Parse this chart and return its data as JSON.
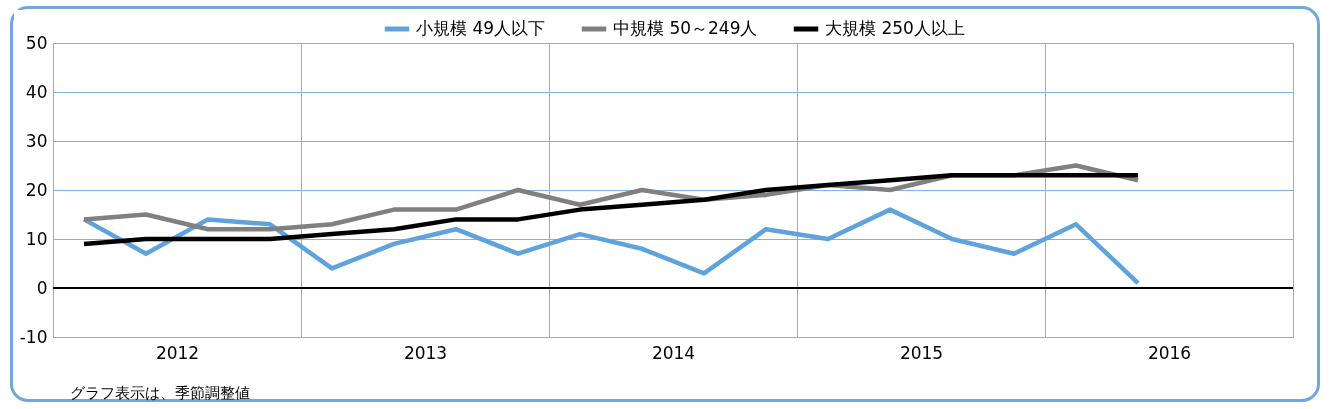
{
  "chart_data": {
    "type": "line",
    "x": [
      2012.125,
      2012.375,
      2012.625,
      2012.875,
      2013.125,
      2013.375,
      2013.625,
      2013.875,
      2014.125,
      2014.375,
      2014.625,
      2014.875,
      2015.125,
      2015.375,
      2015.625,
      2015.875,
      2016.125,
      2016.375
    ],
    "series": [
      {
        "name": "小規模 49人以下",
        "color": "#5fa3dc",
        "values": [
          14,
          7,
          14,
          13,
          4,
          9,
          12,
          7,
          11,
          8,
          3,
          12,
          10,
          16,
          10,
          7,
          13,
          1
        ]
      },
      {
        "name": "中規模 50～249人",
        "color": "#808080",
        "values": [
          14,
          15,
          12,
          12,
          13,
          16,
          16,
          20,
          17,
          20,
          18,
          19,
          21,
          20,
          23,
          23,
          25,
          22
        ]
      },
      {
        "name": "大規模 250人以上",
        "color": "#000000",
        "values": [
          9,
          10,
          10,
          10,
          11,
          12,
          14,
          14,
          16,
          17,
          18,
          20,
          21,
          22,
          23,
          23,
          23,
          23
        ]
      }
    ],
    "xlim": [
      2012,
      2017
    ],
    "xticks": [
      {
        "value": 2012,
        "label": null
      },
      {
        "value": 2012.5,
        "label": "2012"
      },
      {
        "value": 2013,
        "label": null
      },
      {
        "value": 2013.5,
        "label": "2013"
      },
      {
        "value": 2014,
        "label": null
      },
      {
        "value": 2014.5,
        "label": "2014"
      },
      {
        "value": 2015,
        "label": null
      },
      {
        "value": 2015.5,
        "label": "2015"
      },
      {
        "value": 2016,
        "label": null
      },
      {
        "value": 2016.5,
        "label": "2016"
      },
      {
        "value": 2017,
        "label": null
      }
    ],
    "ylim": [
      -10,
      50
    ],
    "yticks": [
      -10,
      0,
      10,
      20,
      30,
      40,
      50
    ],
    "grid": true,
    "legend": "top",
    "marker": "none",
    "line_style": "solid",
    "ref_lines": [
      {
        "axis": "y",
        "value": 0,
        "color": "#000000"
      }
    ],
    "annotations": [
      "グラフ表示は、季節調整値"
    ]
  }
}
